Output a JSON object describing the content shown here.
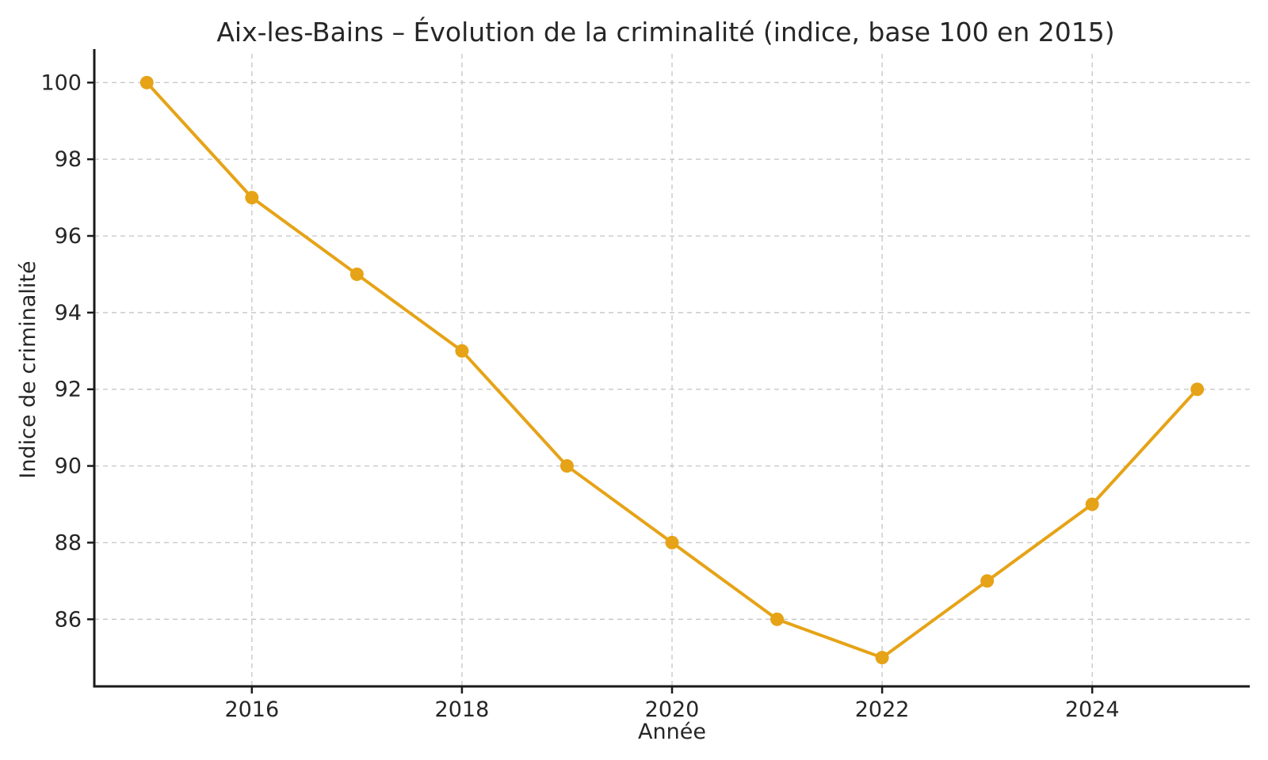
{
  "chart_data": {
    "type": "line",
    "title": "Aix-les-Bains – Évolution de la criminalité (indice, base 100 en 2015)",
    "xlabel": "Année",
    "ylabel": "Indice de criminalité",
    "x": [
      2015,
      2016,
      2017,
      2018,
      2019,
      2020,
      2021,
      2022,
      2023,
      2024,
      2025
    ],
    "series": [
      {
        "name": "Indice de criminalité (base 100 en 2015)",
        "values": [
          100,
          97,
          95,
          93,
          90,
          88,
          86,
          85,
          87,
          89,
          92
        ]
      }
    ],
    "xticks": [
      2016,
      2018,
      2020,
      2022,
      2024
    ],
    "yticks": [
      86,
      88,
      90,
      92,
      94,
      96,
      98,
      100
    ],
    "xlim": [
      2014.5,
      2025.5
    ],
    "ylim": [
      84.25,
      100.75
    ],
    "grid": true,
    "grid_style": "dashed",
    "legend": "none",
    "colors": {
      "line": "#E6A317",
      "marker": "#E6A317",
      "grid": "#c9c9c9",
      "axis": "#1a1a1a",
      "text": "#262626",
      "background": "#ffffff"
    }
  }
}
